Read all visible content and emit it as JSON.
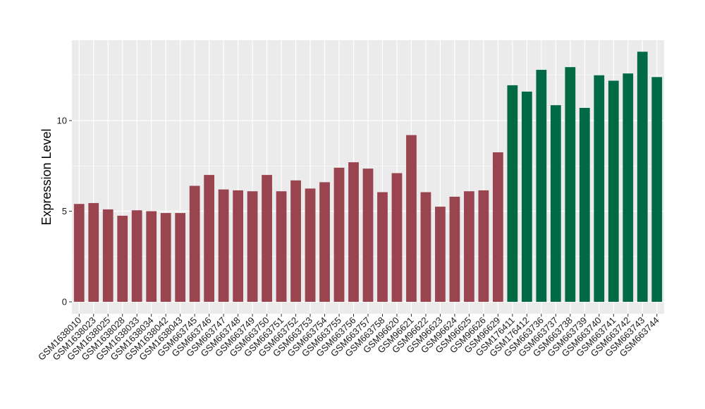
{
  "chart_data": {
    "type": "bar",
    "ylabel": "Expression Level",
    "xlabel": "",
    "title": "",
    "ylim": [
      0,
      14.5
    ],
    "yticks": [
      0,
      5,
      10
    ],
    "grid": true,
    "legend": "none",
    "colors": {
      "group_a": "#9a4450",
      "group_b": "#006a44",
      "panel_bg": "#ebebeb",
      "grid": "#ffffff"
    },
    "categories": [
      "GSM1638010",
      "GSM1638023",
      "GSM1638025",
      "GSM1638028",
      "GSM1638033",
      "GSM1638034",
      "GSM1638042",
      "GSM1638043",
      "GSM663745",
      "GSM663746",
      "GSM663747",
      "GSM663748",
      "GSM663749",
      "GSM663750",
      "GSM663751",
      "GSM663752",
      "GSM663753",
      "GSM663754",
      "GSM663755",
      "GSM663756",
      "GSM663757",
      "GSM663758",
      "GSM96620",
      "GSM96621",
      "GSM96622",
      "GSM96623",
      "GSM96624",
      "GSM96625",
      "GSM96626",
      "GSM96629",
      "GSM176411",
      "GSM176412",
      "GSM663736",
      "GSM663737",
      "GSM663738",
      "GSM663739",
      "GSM663740",
      "GSM663741",
      "GSM663742",
      "GSM663743",
      "GSM663744"
    ],
    "values": [
      5.4,
      5.45,
      5.1,
      4.75,
      5.05,
      5.0,
      4.9,
      4.9,
      6.4,
      7.0,
      6.2,
      6.15,
      6.1,
      7.0,
      6.1,
      6.7,
      6.25,
      6.6,
      7.4,
      7.7,
      7.35,
      6.05,
      7.1,
      9.2,
      6.05,
      5.25,
      5.8,
      6.1,
      6.15,
      8.25,
      11.95,
      11.6,
      12.8,
      10.85,
      12.95,
      10.7,
      12.5,
      12.2,
      12.6,
      13.8,
      12.4
    ],
    "groups": [
      "a",
      "a",
      "a",
      "a",
      "a",
      "a",
      "a",
      "a",
      "a",
      "a",
      "a",
      "a",
      "a",
      "a",
      "a",
      "a",
      "a",
      "a",
      "a",
      "a",
      "a",
      "a",
      "a",
      "a",
      "a",
      "a",
      "a",
      "a",
      "a",
      "a",
      "b",
      "b",
      "b",
      "b",
      "b",
      "b",
      "b",
      "b",
      "b",
      "b",
      "b"
    ]
  }
}
